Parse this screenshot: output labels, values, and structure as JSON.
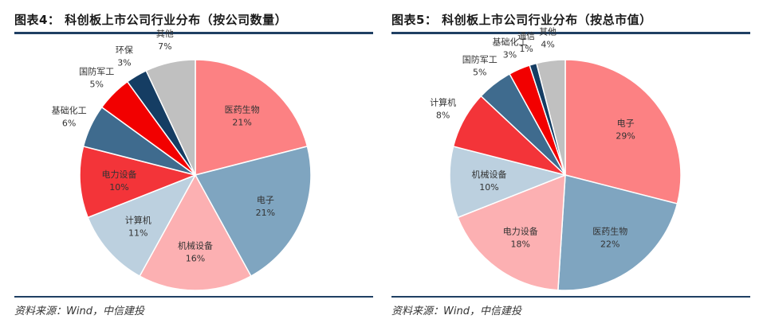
{
  "left": {
    "title": "图表4：  科创板上市公司行业分布（按公司数量）",
    "source": "资料来源：Wind，中信建投"
  },
  "right": {
    "title": "图表5：  科创板上市公司行业分布（按总市值）",
    "source": "资料来源：Wind，中信建投"
  },
  "chart_data": [
    {
      "type": "pie",
      "title": "科创板上市公司行业分布（按公司数量）",
      "slices": [
        {
          "label": "医药生物",
          "value": 21,
          "value_label": "21%",
          "color": "#fc8183"
        },
        {
          "label": "电子",
          "value": 21,
          "value_label": "21%",
          "color": "#7fa5c0"
        },
        {
          "label": "机械设备",
          "value": 16,
          "value_label": "16%",
          "color": "#fcb0b2"
        },
        {
          "label": "计算机",
          "value": 11,
          "value_label": "11%",
          "color": "#bcd0df"
        },
        {
          "label": "电力设备",
          "value": 10,
          "value_label": "10%",
          "color": "#f33439"
        },
        {
          "label": "基础化工",
          "value": 6,
          "value_label": "6%",
          "color": "#3f6b8e"
        },
        {
          "label": "国防军工",
          "value": 5,
          "value_label": "5%",
          "color": "#f20000"
        },
        {
          "label": "环保",
          "value": 3,
          "value_label": "3%",
          "color": "#153d63"
        },
        {
          "label": "其他",
          "value": 7,
          "value_label": "7%",
          "color": "#c0c0c0"
        }
      ]
    },
    {
      "type": "pie",
      "title": "科创板上市公司行业分布（按总市值）",
      "slices": [
        {
          "label": "电子",
          "value": 29,
          "value_label": "29%",
          "color": "#fc8183"
        },
        {
          "label": "医药生物",
          "value": 22,
          "value_label": "22%",
          "color": "#7fa5c0"
        },
        {
          "label": "电力设备",
          "value": 18,
          "value_label": "18%",
          "color": "#fcb0b2"
        },
        {
          "label": "机械设备",
          "value": 10,
          "value_label": "10%",
          "color": "#bcd0df"
        },
        {
          "label": "计算机",
          "value": 8,
          "value_label": "8%",
          "color": "#f33439"
        },
        {
          "label": "国防军工",
          "value": 5,
          "value_label": "5%",
          "color": "#3f6b8e"
        },
        {
          "label": "基础化工",
          "value": 3,
          "value_label": "3%",
          "color": "#f20000"
        },
        {
          "label": "通信",
          "value": 1,
          "value_label": "1%",
          "color": "#153d63"
        },
        {
          "label": "其他",
          "value": 4,
          "value_label": "4%",
          "color": "#c0c0c0"
        }
      ]
    }
  ]
}
